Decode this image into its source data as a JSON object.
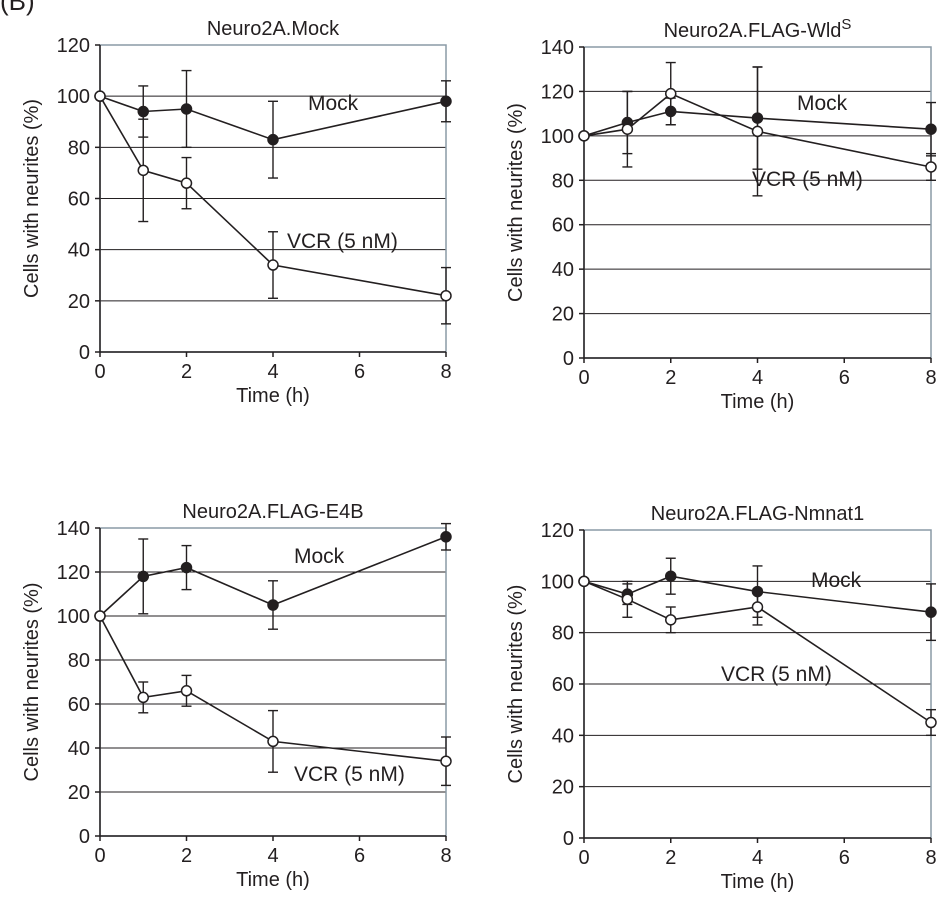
{
  "figure": {
    "panel_label": "(B)"
  },
  "colors": {
    "ink": "#231f20",
    "frame": "#8a9aa6",
    "grid": "#231f20"
  },
  "chart_data": [
    {
      "type": "line",
      "title": "Neuro2A.Mock",
      "xlabel": "Time (h)",
      "ylabel": "Cells with neurites (%)",
      "xlim": [
        0,
        8
      ],
      "ylim": [
        0,
        120
      ],
      "xticks": [
        0,
        2,
        4,
        6,
        8
      ],
      "yticks": [
        0,
        20,
        40,
        60,
        80,
        100,
        120
      ],
      "grid": "horizontal",
      "series": [
        {
          "name": "Mock",
          "marker": "filled",
          "x": [
            0,
            1,
            2,
            4,
            8
          ],
          "y": [
            100,
            94,
            95,
            83,
            98
          ],
          "err": [
            0,
            10,
            15,
            15,
            8
          ]
        },
        {
          "name": "VCR (5 nM)",
          "marker": "open",
          "x": [
            0,
            1,
            2,
            4,
            8
          ],
          "y": [
            100,
            71,
            66,
            34,
            22
          ],
          "err": [
            0,
            20,
            10,
            13,
            11
          ]
        }
      ]
    },
    {
      "type": "line",
      "title": "Neuro2A.FLAG-Wld",
      "title_sup": "S",
      "xlabel": "Time (h)",
      "ylabel": "Cells with neurites (%)",
      "xlim": [
        0,
        8
      ],
      "ylim": [
        0,
        140
      ],
      "xticks": [
        0,
        2,
        4,
        6,
        8
      ],
      "yticks": [
        0,
        20,
        40,
        60,
        80,
        100,
        120,
        140
      ],
      "grid": "horizontal",
      "series": [
        {
          "name": "Mock",
          "marker": "filled",
          "x": [
            0,
            1,
            2,
            4,
            8
          ],
          "y": [
            100,
            106,
            111,
            108,
            103
          ],
          "err": [
            0,
            14,
            6,
            23,
            12
          ]
        },
        {
          "name": "VCR (5 nM)",
          "marker": "open",
          "x": [
            0,
            1,
            2,
            4,
            8
          ],
          "y": [
            100,
            103,
            119,
            102,
            86
          ],
          "err": [
            0,
            17,
            14,
            29,
            6
          ]
        }
      ]
    },
    {
      "type": "line",
      "title": "Neuro2A.FLAG-E4B",
      "xlabel": "Time (h)",
      "ylabel": "Cells with neurites (%)",
      "xlim": [
        0,
        8
      ],
      "ylim": [
        0,
        140
      ],
      "xticks": [
        0,
        2,
        4,
        6,
        8
      ],
      "yticks": [
        0,
        20,
        40,
        60,
        80,
        100,
        120,
        140
      ],
      "grid": "horizontal",
      "series": [
        {
          "name": "Mock",
          "marker": "filled",
          "x": [
            0,
            1,
            2,
            4,
            8
          ],
          "y": [
            100,
            118,
            122,
            105,
            136
          ],
          "err": [
            0,
            17,
            10,
            11,
            6
          ]
        },
        {
          "name": "VCR (5 nM)",
          "marker": "open",
          "x": [
            0,
            1,
            2,
            4,
            8
          ],
          "y": [
            100,
            63,
            66,
            43,
            34
          ],
          "err": [
            0,
            7,
            7,
            14,
            11
          ]
        }
      ]
    },
    {
      "type": "line",
      "title": "Neuro2A.FLAG-Nmnat1",
      "xlabel": "Time (h)",
      "ylabel": "Cells with neurites (%)",
      "xlim": [
        0,
        8
      ],
      "ylim": [
        0,
        120
      ],
      "xticks": [
        0,
        2,
        4,
        6,
        8
      ],
      "yticks": [
        0,
        20,
        40,
        60,
        80,
        100,
        120
      ],
      "grid": "horizontal",
      "series": [
        {
          "name": "Mock",
          "marker": "filled",
          "x": [
            0,
            1,
            2,
            4,
            8
          ],
          "y": [
            100,
            95,
            102,
            96,
            88
          ],
          "err": [
            0,
            4,
            7,
            10,
            11
          ]
        },
        {
          "name": "VCR (5 nM)",
          "marker": "open",
          "x": [
            0,
            1,
            2,
            4,
            8
          ],
          "y": [
            100,
            93,
            85,
            90,
            45
          ],
          "err": [
            0,
            7,
            5,
            7,
            5
          ]
        }
      ]
    }
  ]
}
